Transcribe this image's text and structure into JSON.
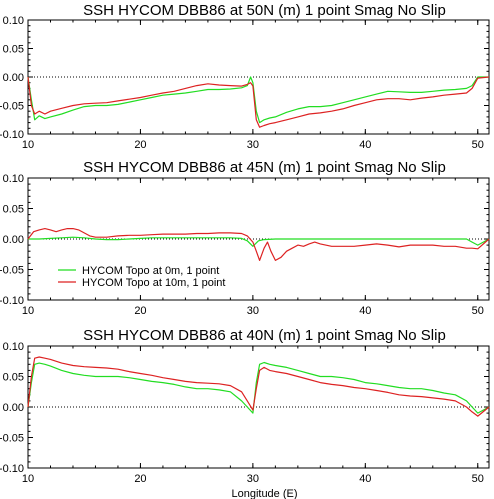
{
  "colors": {
    "green": "#22dd22",
    "red": "#dd2222",
    "axis": "#000000",
    "zero_line": "#000000"
  },
  "chart_data": [
    {
      "type": "line",
      "title": "SSH HYCOM DBB86 at 50N (m) 1 point Smag No Slip",
      "xlabel": "",
      "ylabel": "",
      "xlim": [
        10,
        51
      ],
      "ylim": [
        -0.1,
        0.1
      ],
      "xticks": [
        10,
        20,
        30,
        40,
        50
      ],
      "yticks": [
        "-0.10",
        "-0.05",
        "0.00",
        "0.05",
        "0.10"
      ],
      "zero_line": "dotted",
      "series": [
        {
          "color": "green",
          "x": [
            10,
            10.3,
            10.6,
            11,
            11.5,
            12,
            13,
            14,
            15,
            16,
            17,
            18,
            19,
            20,
            21,
            22,
            23,
            24,
            25,
            26,
            27,
            28,
            29,
            29.5,
            29.8,
            30,
            30.3,
            30.6,
            31,
            31.5,
            32,
            33,
            34,
            35,
            36,
            37,
            38,
            39,
            40,
            41,
            42,
            43,
            44,
            45,
            46,
            47,
            48,
            49,
            49.5,
            50,
            51
          ],
          "y": [
            0.0,
            -0.04,
            -0.075,
            -0.068,
            -0.073,
            -0.07,
            -0.065,
            -0.058,
            -0.052,
            -0.05,
            -0.05,
            -0.048,
            -0.044,
            -0.04,
            -0.036,
            -0.032,
            -0.03,
            -0.028,
            -0.025,
            -0.022,
            -0.022,
            -0.021,
            -0.019,
            -0.015,
            0.0,
            -0.01,
            -0.06,
            -0.08,
            -0.075,
            -0.072,
            -0.07,
            -0.062,
            -0.056,
            -0.052,
            -0.052,
            -0.05,
            -0.045,
            -0.04,
            -0.035,
            -0.03,
            -0.025,
            -0.026,
            -0.027,
            -0.027,
            -0.025,
            -0.023,
            -0.022,
            -0.02,
            -0.015,
            0.0,
            0.0
          ]
        },
        {
          "color": "red",
          "x": [
            10,
            10.3,
            10.6,
            11,
            11.5,
            12,
            13,
            14,
            15,
            16,
            17,
            18,
            19,
            20,
            21,
            22,
            23,
            24,
            25,
            26,
            27,
            28,
            29,
            29.5,
            29.8,
            30,
            30.3,
            30.6,
            31,
            31.5,
            32,
            33,
            34,
            35,
            36,
            37,
            38,
            39,
            40,
            41,
            42,
            43,
            44,
            45,
            46,
            47,
            48,
            49,
            49.5,
            50,
            51
          ],
          "y": [
            0.0,
            -0.05,
            -0.065,
            -0.06,
            -0.065,
            -0.06,
            -0.055,
            -0.05,
            -0.047,
            -0.046,
            -0.045,
            -0.042,
            -0.039,
            -0.036,
            -0.032,
            -0.028,
            -0.025,
            -0.02,
            -0.015,
            -0.012,
            -0.014,
            -0.015,
            -0.016,
            -0.013,
            -0.01,
            -0.016,
            -0.075,
            -0.088,
            -0.085,
            -0.082,
            -0.08,
            -0.075,
            -0.07,
            -0.065,
            -0.063,
            -0.06,
            -0.056,
            -0.05,
            -0.045,
            -0.04,
            -0.038,
            -0.038,
            -0.04,
            -0.037,
            -0.035,
            -0.032,
            -0.03,
            -0.028,
            -0.02,
            -0.002,
            0.0
          ]
        }
      ]
    },
    {
      "type": "line",
      "title": "SSH HYCOM DBB86 at 45N (m) 1 point Smag No Slip",
      "xlabel": "",
      "ylabel": "",
      "xlim": [
        10,
        51
      ],
      "ylim": [
        -0.1,
        0.1
      ],
      "xticks": [
        10,
        20,
        30,
        40,
        50
      ],
      "yticks": [
        "-0.10",
        "-0.05",
        "0.00",
        "0.05",
        "0.10"
      ],
      "zero_line": "dotted",
      "legend_position": "lower-left",
      "series": [
        {
          "name": "HYCOM Topo at 0m, 1 point",
          "color": "green",
          "x": [
            10,
            11,
            12,
            13,
            14,
            15,
            16,
            17,
            18,
            19,
            20,
            21,
            22,
            23,
            24,
            25,
            26,
            27,
            28,
            29,
            29.5,
            30,
            30.5,
            31,
            32,
            33,
            34,
            35,
            36,
            37,
            38,
            39,
            40,
            41,
            42,
            43,
            44,
            45,
            46,
            47,
            48,
            49,
            49.5,
            50,
            51
          ],
          "y": [
            0.0,
            0.0,
            0.001,
            0.002,
            0.003,
            0.002,
            0.0,
            -0.001,
            -0.001,
            0.0,
            0.001,
            0.002,
            0.002,
            0.002,
            0.002,
            0.002,
            0.002,
            0.002,
            0.002,
            0.001,
            -0.003,
            -0.012,
            -0.003,
            -0.001,
            0.0,
            0.0,
            0.0,
            0.0,
            0.0,
            0.0,
            0.0,
            0.0,
            0.0,
            0.0,
            0.0,
            0.0,
            0.0,
            0.0,
            0.0,
            0.0,
            0.0,
            0.0,
            -0.005,
            -0.01,
            0.0
          ]
        },
        {
          "name": "HYCOM Topo at 10m, 1 point",
          "color": "red",
          "x": [
            10,
            10.5,
            11,
            11.5,
            12,
            12.5,
            13,
            13.5,
            14,
            14.5,
            15,
            15.5,
            16,
            17,
            18,
            19,
            20,
            21,
            22,
            23,
            24,
            25,
            26,
            27,
            28,
            29,
            29.5,
            30,
            30.3,
            30.6,
            31,
            31.3,
            31.6,
            32,
            32.5,
            33,
            33.5,
            34,
            34.5,
            35,
            35.5,
            36,
            37,
            38,
            39,
            40,
            41,
            42,
            43,
            44,
            45,
            46,
            47,
            48,
            49,
            49.5,
            50,
            51
          ],
          "y": [
            0.0,
            0.012,
            0.015,
            0.017,
            0.015,
            0.012,
            0.015,
            0.017,
            0.017,
            0.015,
            0.01,
            0.005,
            0.003,
            0.003,
            0.005,
            0.006,
            0.006,
            0.007,
            0.008,
            0.008,
            0.008,
            0.009,
            0.009,
            0.01,
            0.01,
            0.009,
            0.005,
            -0.005,
            -0.02,
            -0.035,
            -0.015,
            -0.005,
            -0.02,
            -0.035,
            -0.03,
            -0.02,
            -0.015,
            -0.01,
            -0.012,
            -0.008,
            -0.005,
            -0.008,
            -0.012,
            -0.012,
            -0.012,
            -0.01,
            -0.008,
            -0.01,
            -0.013,
            -0.01,
            -0.01,
            -0.01,
            -0.012,
            -0.012,
            -0.015,
            -0.015,
            -0.016,
            0.0
          ]
        }
      ]
    },
    {
      "type": "line",
      "title": "SSH HYCOM DBB86 at 40N (m) 1 point Smag No Slip",
      "xlabel": "Longitude (E)",
      "ylabel": "",
      "xlim": [
        10,
        51
      ],
      "ylim": [
        -0.1,
        0.1
      ],
      "xticks": [
        10,
        20,
        30,
        40,
        50
      ],
      "yticks": [
        "-0.10",
        "-0.05",
        "0.00",
        "0.05",
        "0.10"
      ],
      "zero_line": "dotted",
      "series": [
        {
          "color": "green",
          "x": [
            10,
            10.3,
            10.6,
            11,
            11.5,
            12,
            13,
            14,
            15,
            16,
            17,
            18,
            19,
            20,
            21,
            22,
            23,
            24,
            25,
            26,
            27,
            28,
            29,
            29.5,
            30,
            30.3,
            30.6,
            31,
            31.5,
            32,
            33,
            34,
            35,
            36,
            37,
            38,
            39,
            40,
            41,
            42,
            43,
            44,
            45,
            46,
            47,
            48,
            49,
            49.5,
            50,
            51
          ],
          "y": [
            0.0,
            0.04,
            0.07,
            0.072,
            0.07,
            0.067,
            0.06,
            0.055,
            0.052,
            0.05,
            0.05,
            0.05,
            0.048,
            0.045,
            0.042,
            0.04,
            0.037,
            0.033,
            0.03,
            0.03,
            0.028,
            0.025,
            0.01,
            0.0,
            -0.01,
            0.04,
            0.07,
            0.073,
            0.07,
            0.068,
            0.065,
            0.06,
            0.055,
            0.05,
            0.05,
            0.048,
            0.045,
            0.04,
            0.038,
            0.035,
            0.032,
            0.03,
            0.03,
            0.027,
            0.023,
            0.02,
            0.01,
            0.0,
            -0.01,
            0.0
          ]
        },
        {
          "color": "red",
          "x": [
            10,
            10.3,
            10.6,
            11,
            11.5,
            12,
            13,
            14,
            15,
            16,
            17,
            18,
            19,
            20,
            21,
            22,
            23,
            24,
            25,
            26,
            27,
            28,
            29,
            29.5,
            30,
            30.3,
            30.6,
            31,
            31.5,
            32,
            33,
            34,
            35,
            36,
            37,
            38,
            39,
            40,
            41,
            42,
            43,
            44,
            45,
            46,
            47,
            48,
            49,
            49.5,
            50,
            51
          ],
          "y": [
            0.0,
            0.05,
            0.08,
            0.082,
            0.08,
            0.078,
            0.072,
            0.068,
            0.066,
            0.065,
            0.064,
            0.062,
            0.058,
            0.055,
            0.052,
            0.048,
            0.045,
            0.042,
            0.04,
            0.039,
            0.038,
            0.035,
            0.025,
            0.01,
            -0.005,
            0.03,
            0.06,
            0.065,
            0.06,
            0.058,
            0.055,
            0.05,
            0.045,
            0.04,
            0.037,
            0.035,
            0.032,
            0.03,
            0.027,
            0.024,
            0.02,
            0.018,
            0.017,
            0.015,
            0.013,
            0.01,
            0.0,
            -0.008,
            -0.015,
            0.0
          ]
        }
      ]
    }
  ]
}
